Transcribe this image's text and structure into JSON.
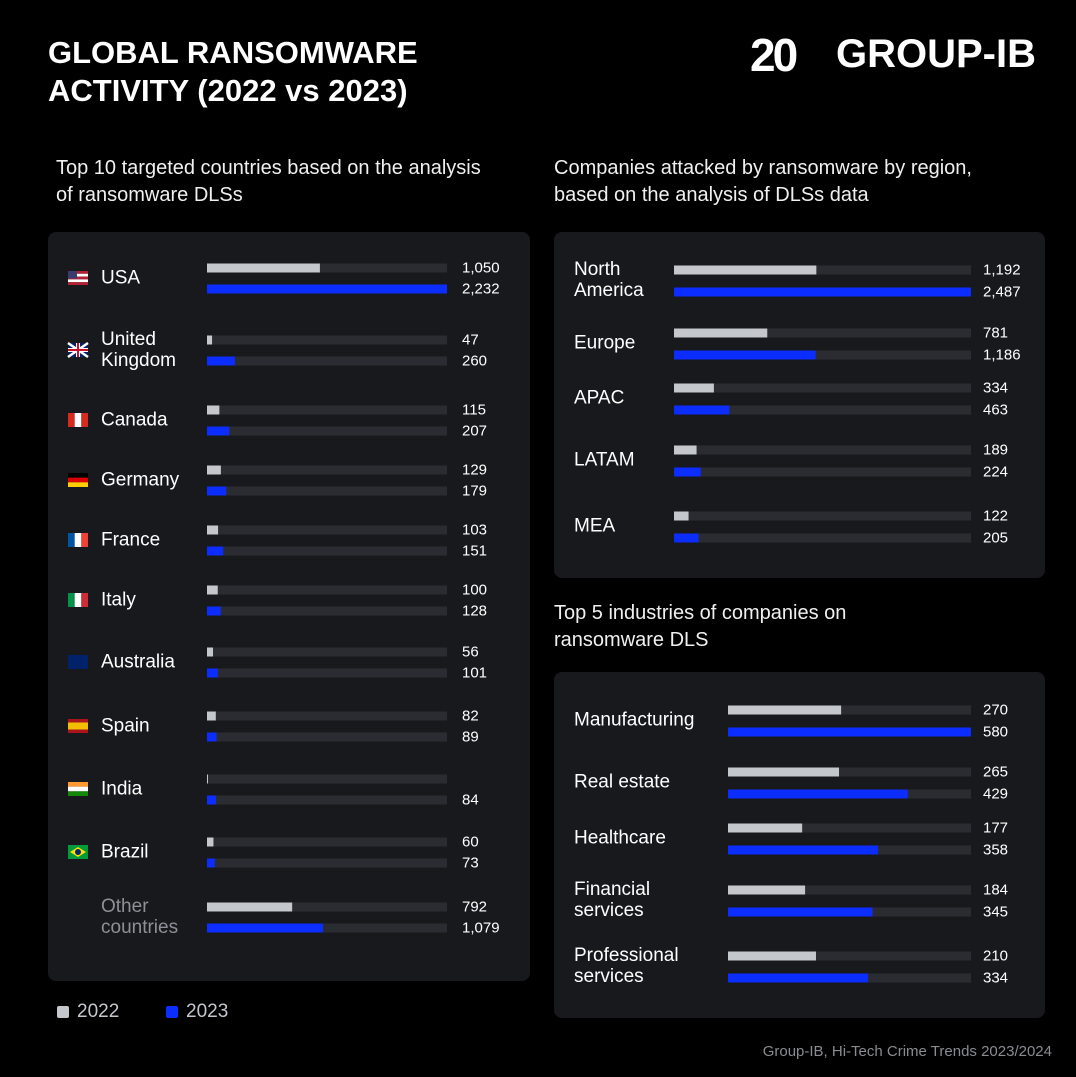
{
  "header": {
    "title": "GLOBAL RANSOMWARE ACTIVITY (2022 vs 2023)",
    "logo_mark": "20",
    "logo_name": "GROUP-IB"
  },
  "source": "Group-IB, Hi-Tech Crime Trends 2023/2024",
  "chart_data": [
    {
      "type": "bar",
      "orientation": "horizontal",
      "title": "Top 10 targeted countries based on the analysis of ransomware DLSs",
      "categories": [
        "USA",
        "United Kingdom",
        "Canada",
        "Germany",
        "France",
        "Italy",
        "Australia",
        "Spain",
        "India",
        "Brazil",
        "Other countries"
      ],
      "xlim": [
        0,
        2232
      ],
      "series": [
        {
          "name": "2022",
          "color": "#c4c7cc",
          "values": [
            1050,
            47,
            115,
            129,
            103,
            100,
            56,
            82,
            5,
            60,
            792
          ],
          "value_labels": [
            "1,050",
            "47",
            "115",
            "129",
            "103",
            "100",
            "56",
            "82",
            null,
            "60",
            "792"
          ]
        },
        {
          "name": "2023",
          "color": "#0b2dff",
          "values": [
            2232,
            260,
            207,
            179,
            151,
            128,
            101,
            89,
            84,
            73,
            1079
          ],
          "value_labels": [
            "2,232",
            "260",
            "207",
            "179",
            "151",
            "128",
            "101",
            "89",
            "84",
            "73",
            "1,079"
          ]
        }
      ]
    },
    {
      "type": "bar",
      "orientation": "horizontal",
      "title": "Companies attacked by ransomware by region, based on the analysis of DLSs data",
      "categories": [
        "North America",
        "Europe",
        "APAC",
        "LATAM",
        "MEA"
      ],
      "xlim": [
        0,
        2487
      ],
      "series": [
        {
          "color": "#c4c7cc",
          "values": [
            1192,
            781,
            334,
            189,
            122
          ],
          "value_labels": [
            "1,192",
            "781",
            "334",
            "189",
            "122"
          ]
        },
        {
          "color": "#0b2dff",
          "values": [
            2487,
            1186,
            463,
            224,
            205
          ],
          "value_labels": [
            "2,487",
            "1,186",
            "463",
            "224",
            "205"
          ]
        }
      ]
    },
    {
      "type": "bar",
      "orientation": "horizontal",
      "title": "Top 5 industries of companies on ransomware DLS",
      "categories": [
        "Manufacturing",
        "Real estate",
        "Healthcare",
        "Financial services",
        "Professional services"
      ],
      "xlim": [
        0,
        580
      ],
      "series": [
        {
          "color": "#c4c7cc",
          "values": [
            270,
            265,
            177,
            184,
            210
          ]
        },
        {
          "color": "#0b2dff",
          "values": [
            580,
            429,
            358,
            345,
            334
          ]
        }
      ]
    }
  ]
}
